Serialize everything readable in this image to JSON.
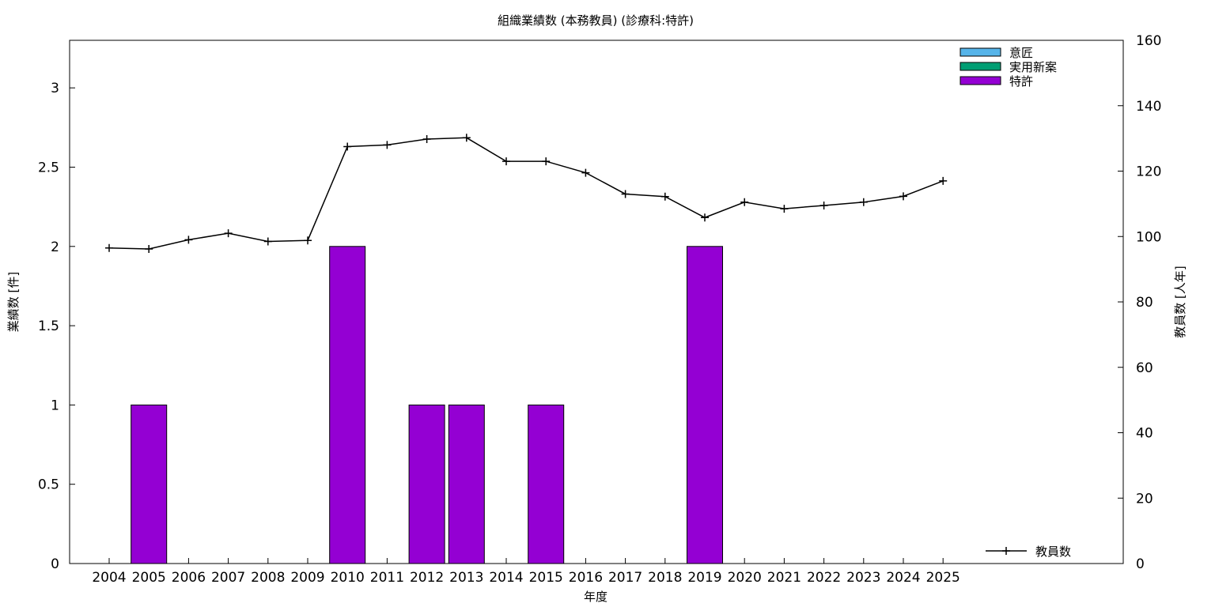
{
  "chart_data": {
    "type": "bar",
    "title": "組織業績数 (本務教員) (診療科:特許)",
    "xlabel": "年度",
    "ylabel_left": "業績数 [件]",
    "ylabel_right": "教員数 [人年]",
    "categories": [
      "2004",
      "2005",
      "2006",
      "2007",
      "2008",
      "2009",
      "2010",
      "2011",
      "2012",
      "2013",
      "2014",
      "2015",
      "2016",
      "2017",
      "2018",
      "2019",
      "2020",
      "2021",
      "2022",
      "2023",
      "2024",
      "2025"
    ],
    "ylim_left": [
      0,
      3.3
    ],
    "yticks_left": [
      "0",
      "0.5",
      "1",
      "1.5",
      "2",
      "2.5",
      "3"
    ],
    "ylim_right": [
      0,
      160
    ],
    "yticks_right": [
      "0",
      "20",
      "40",
      "60",
      "80",
      "100",
      "120",
      "140",
      "160"
    ],
    "series": [
      {
        "name": "意匠",
        "color": "#56b4e9",
        "values": [
          0,
          0,
          0,
          0,
          0,
          0,
          0,
          0,
          0,
          0,
          0,
          0,
          0,
          0,
          0,
          0,
          0,
          0,
          0,
          0,
          0,
          0
        ]
      },
      {
        "name": "実用新案",
        "color": "#009e73",
        "values": [
          0,
          0,
          0,
          0,
          0,
          0,
          0,
          0,
          0,
          0,
          0,
          0,
          0,
          0,
          0,
          0,
          0,
          0,
          0,
          0,
          0,
          0
        ]
      },
      {
        "name": "特許",
        "color": "#9400d3",
        "values": [
          0,
          1,
          0,
          0,
          0,
          0,
          2,
          0,
          1,
          1,
          0,
          1,
          0,
          0,
          0,
          2,
          0,
          0,
          0,
          0,
          0,
          0
        ]
      }
    ],
    "line": {
      "name": "教員数",
      "color": "#000000",
      "values": [
        96.5,
        96.2,
        99,
        101,
        98.5,
        98.8,
        127.5,
        128,
        129.8,
        130.2,
        123,
        123,
        119.5,
        113,
        112.2,
        105.8,
        110.5,
        108.5,
        109.5,
        110.5,
        112.3,
        117
      ]
    },
    "legend_placement": "top-right",
    "line_legend_placement": "bottom-right",
    "grid": false
  }
}
